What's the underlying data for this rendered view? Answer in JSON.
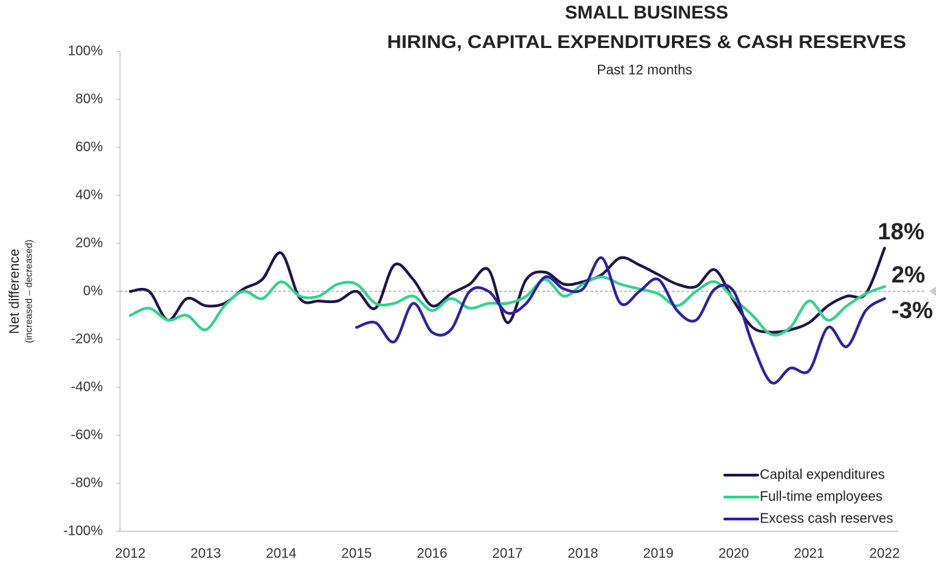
{
  "chart_data": {
    "type": "line",
    "title": [
      "SMALL BUSINESS",
      "HIRING, CAPITAL EXPENDITURES & CASH RESERVES"
    ],
    "subtitle": "Past 12 months",
    "y_label": [
      "Net difference",
      "(increased – decreased)"
    ],
    "categories": [
      "2012",
      null,
      null,
      null,
      "2013",
      null,
      null,
      null,
      "2014",
      null,
      null,
      null,
      "2015",
      null,
      null,
      null,
      "2016",
      null,
      null,
      null,
      "2017",
      null,
      null,
      null,
      "2018",
      null,
      null,
      null,
      "2019",
      null,
      null,
      null,
      "2020",
      null,
      null,
      null,
      "2021",
      null,
      null,
      null,
      "2022"
    ],
    "series": [
      {
        "name": "Capital expenditures",
        "color": "#1e1446",
        "end_label": "18%",
        "values": [
          0,
          0,
          -12,
          -3,
          -6,
          -5,
          1,
          5,
          16,
          -3,
          -4,
          -4,
          0,
          -7,
          11,
          5,
          -6,
          -1,
          3,
          9,
          -13,
          5,
          8,
          3,
          4,
          7,
          14,
          11,
          7,
          3,
          2,
          9,
          -4,
          -15,
          -17,
          -16,
          -13,
          -6,
          -2,
          -1,
          18
        ]
      },
      {
        "name": "Full-time employees",
        "color": "#2fd38a",
        "end_label": "2%",
        "values": [
          -10,
          -7,
          -12,
          -10,
          -16,
          -6,
          0,
          -3,
          4,
          -2,
          -2,
          3,
          3,
          -5,
          -5,
          -2,
          -8,
          -3,
          -7,
          -5,
          -5,
          -2,
          5,
          -2,
          3,
          6,
          3,
          1,
          -1,
          -6,
          0,
          4,
          -3,
          -10,
          -18,
          -15,
          -4,
          -12,
          -6,
          -1,
          2
        ]
      },
      {
        "name": "Excess cash reserves",
        "color": "#2e1fa5",
        "end_label": "-3%",
        "values": [
          null,
          null,
          null,
          null,
          null,
          null,
          null,
          null,
          null,
          null,
          null,
          null,
          -15,
          -13,
          -21,
          -5,
          -17,
          -16,
          0,
          0,
          -9,
          -5,
          6,
          1,
          1,
          14,
          -5,
          0,
          5,
          -8,
          -12,
          1,
          0,
          -22,
          -38,
          -32,
          -33,
          -15,
          -23,
          -8,
          -3
        ]
      }
    ],
    "ylim": [
      -100,
      100
    ],
    "yticks": [
      {
        "value": 100,
        "label": "100%"
      },
      {
        "value": 80,
        "label": "80%"
      },
      {
        "value": 60,
        "label": "60%"
      },
      {
        "value": 40,
        "label": "40%"
      },
      {
        "value": 20,
        "label": "20%"
      },
      {
        "value": 0,
        "label": "0%"
      },
      {
        "value": -20,
        "label": "-20%"
      },
      {
        "value": -40,
        "label": "-40%"
      },
      {
        "value": -60,
        "label": "-60%"
      },
      {
        "value": -80,
        "label": "-80%"
      },
      {
        "value": -100,
        "label": "-100%"
      }
    ],
    "zero_line": true,
    "legend": "lower right"
  }
}
